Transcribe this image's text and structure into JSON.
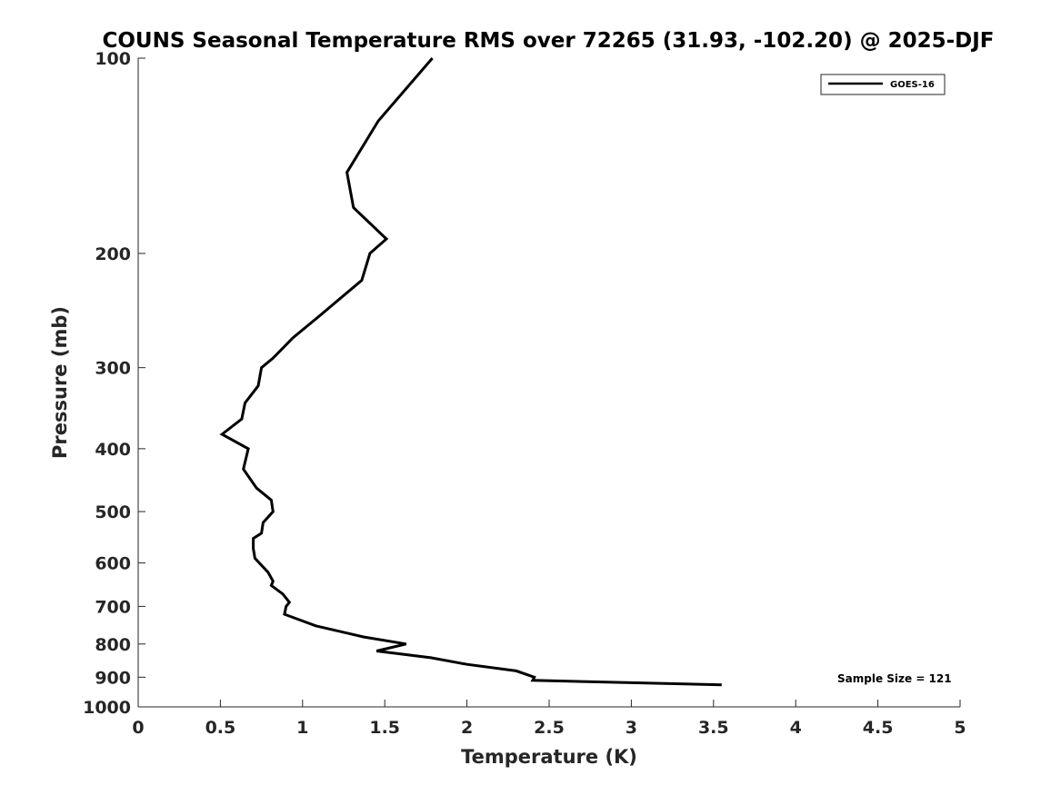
{
  "chart_data": {
    "type": "line",
    "title": "COUNS Seasonal Temperature RMS over 72265 (31.93, -102.20) @ 2025-DJF",
    "xlabel": "Temperature (K)",
    "ylabel": "Pressure (mb)",
    "xlim": [
      0,
      5
    ],
    "ylim": [
      100,
      1000
    ],
    "yscale": "log",
    "y_reversed": true,
    "x_ticks": [
      "0",
      "0.5",
      "1",
      "1.5",
      "2",
      "2.5",
      "3",
      "3.5",
      "4",
      "4.5",
      "5"
    ],
    "x_tick_values": [
      0,
      0.5,
      1,
      1.5,
      2,
      2.5,
      3,
      3.5,
      4,
      4.5,
      5
    ],
    "y_ticks": [
      "100",
      "200",
      "300",
      "400",
      "500",
      "600",
      "700",
      "800",
      "900",
      "1000"
    ],
    "y_tick_values": [
      100,
      200,
      300,
      400,
      500,
      600,
      700,
      800,
      900,
      1000
    ],
    "legend_position": "top-right",
    "grid": false,
    "series": [
      {
        "name": "GOES-16",
        "color": "#000000",
        "points": [
          [
            1.79,
            100
          ],
          [
            1.46,
            125
          ],
          [
            1.27,
            150
          ],
          [
            1.31,
            170
          ],
          [
            1.51,
            190
          ],
          [
            1.41,
            200
          ],
          [
            1.36,
            220
          ],
          [
            1.1,
            250
          ],
          [
            0.94,
            270
          ],
          [
            0.82,
            290
          ],
          [
            0.75,
            300
          ],
          [
            0.73,
            320
          ],
          [
            0.65,
            340
          ],
          [
            0.63,
            360
          ],
          [
            0.51,
            380
          ],
          [
            0.67,
            400
          ],
          [
            0.64,
            430
          ],
          [
            0.72,
            460
          ],
          [
            0.81,
            480
          ],
          [
            0.82,
            500
          ],
          [
            0.76,
            520
          ],
          [
            0.75,
            540
          ],
          [
            0.7,
            550
          ],
          [
            0.7,
            570
          ],
          [
            0.71,
            590
          ],
          [
            0.79,
            620
          ],
          [
            0.82,
            640
          ],
          [
            0.81,
            650
          ],
          [
            0.88,
            670
          ],
          [
            0.92,
            690
          ],
          [
            0.9,
            700
          ],
          [
            0.89,
            720
          ],
          [
            1.08,
            750
          ],
          [
            1.37,
            780
          ],
          [
            1.63,
            800
          ],
          [
            1.45,
            820
          ],
          [
            1.78,
            840
          ],
          [
            2.0,
            860
          ],
          [
            2.3,
            880
          ],
          [
            2.41,
            900
          ],
          [
            2.4,
            910
          ],
          [
            3.55,
            925
          ]
        ]
      }
    ],
    "annotation": "Sample Size = 121"
  }
}
